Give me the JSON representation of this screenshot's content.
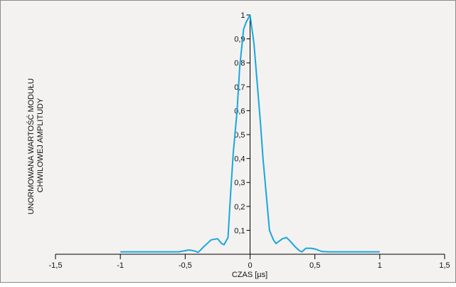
{
  "chart_data": {
    "type": "line",
    "title": "",
    "xlabel": "CZAS [µs]",
    "ylabel_lines": [
      "UNORMOWANA WARTOŚĆ MODUŁU",
      "CHWILOWEJ AMPLITUDY"
    ],
    "xlim": [
      -1.5,
      1.5
    ],
    "ylim": [
      0,
      1
    ],
    "x_ticks": [
      {
        "value": -1.5,
        "label": "-1,5"
      },
      {
        "value": -1,
        "label": "-1"
      },
      {
        "value": -0.5,
        "label": "-0,5"
      },
      {
        "value": 0,
        "label": "0"
      },
      {
        "value": 0.5,
        "label": "0,5"
      },
      {
        "value": 1,
        "label": "1"
      },
      {
        "value": 1.5,
        "label": "1,5"
      }
    ],
    "y_ticks": [
      {
        "value": 0.1,
        "label": "0,1"
      },
      {
        "value": 0.2,
        "label": "0,2"
      },
      {
        "value": 0.3,
        "label": "0,3"
      },
      {
        "value": 0.4,
        "label": "0,4"
      },
      {
        "value": 0.5,
        "label": "0,5"
      },
      {
        "value": 0.6,
        "label": "0,6"
      },
      {
        "value": 0.7,
        "label": "0,7"
      },
      {
        "value": 0.8,
        "label": "0,8"
      },
      {
        "value": 0.9,
        "label": "0,9"
      },
      {
        "value": 1,
        "label": "1"
      }
    ],
    "grid": false,
    "series": [
      {
        "color": "#1aa6dc",
        "x": [
          -1.0,
          -0.8,
          -0.6,
          -0.55,
          -0.5,
          -0.47,
          -0.43,
          -0.4,
          -0.35,
          -0.3,
          -0.25,
          -0.22,
          -0.2,
          -0.17,
          -0.15,
          -0.13,
          -0.1,
          -0.08,
          -0.05,
          -0.03,
          0,
          0.03,
          0.05,
          0.08,
          0.1,
          0.13,
          0.15,
          0.18,
          0.2,
          0.25,
          0.28,
          0.3,
          0.35,
          0.38,
          0.4,
          0.43,
          0.47,
          0.5,
          0.55,
          0.6,
          0.8,
          1.0
        ],
        "y": [
          0.01,
          0.01,
          0.01,
          0.01,
          0.015,
          0.018,
          0.014,
          0.008,
          0.035,
          0.06,
          0.065,
          0.045,
          0.04,
          0.07,
          0.25,
          0.42,
          0.6,
          0.78,
          0.94,
          0.97,
          1.0,
          0.88,
          0.75,
          0.55,
          0.4,
          0.22,
          0.1,
          0.06,
          0.045,
          0.065,
          0.07,
          0.06,
          0.03,
          0.015,
          0.01,
          0.025,
          0.025,
          0.022,
          0.012,
          0.01,
          0.01,
          0.01
        ]
      }
    ]
  }
}
